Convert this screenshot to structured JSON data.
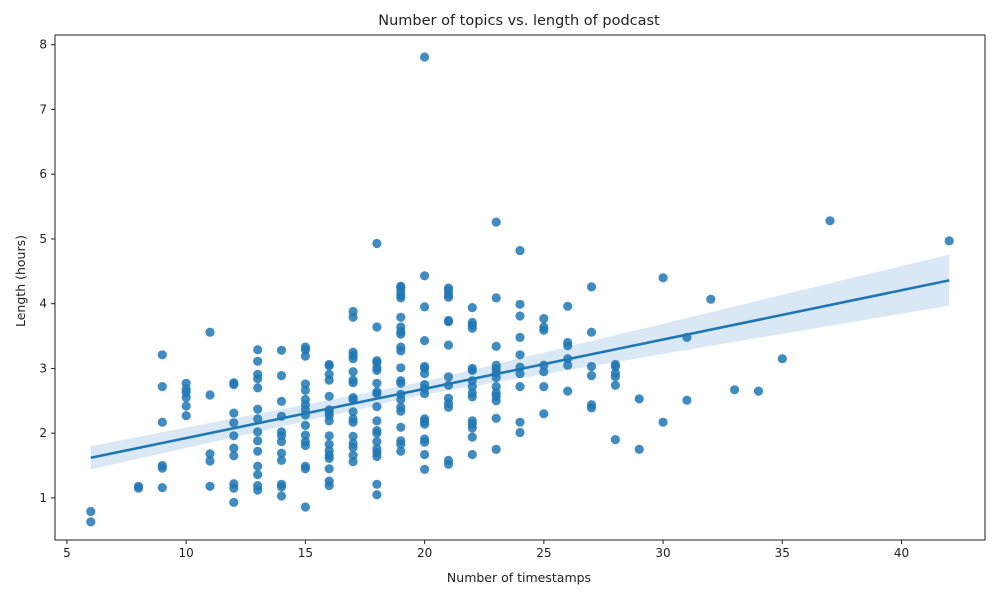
{
  "chart_data": {
    "type": "scatter",
    "title": "Number of topics vs. length of podcast",
    "xlabel": "Number of timestamps",
    "ylabel": "Length (hours)",
    "xlim": [
      4.5,
      43.5
    ],
    "ylim": [
      0.35,
      8.15
    ],
    "xticks": [
      5,
      10,
      15,
      20,
      25,
      30,
      35,
      40
    ],
    "yticks": [
      1,
      2,
      3,
      4,
      5,
      6,
      7,
      8
    ],
    "grid": false,
    "point_color": "#1f77b4",
    "regression": {
      "color": "#1f77b4",
      "band_color": "#c6dbef",
      "line": [
        [
          6,
          1.62
        ],
        [
          42,
          4.36
        ]
      ],
      "ci_lower": [
        [
          6,
          1.44
        ],
        [
          20,
          2.6
        ],
        [
          42,
          3.97
        ]
      ],
      "ci_upper": [
        [
          6,
          1.8
        ],
        [
          20,
          2.8
        ],
        [
          42,
          4.76
        ]
      ]
    },
    "points": [
      [
        6,
        0.63
      ],
      [
        6,
        0.79
      ],
      [
        8,
        1.15
      ],
      [
        8,
        1.18
      ],
      [
        9,
        1.16
      ],
      [
        9,
        1.46
      ],
      [
        9,
        1.5
      ],
      [
        9,
        2.17
      ],
      [
        9,
        2.72
      ],
      [
        9,
        3.21
      ],
      [
        10,
        2.27
      ],
      [
        10,
        2.42
      ],
      [
        10,
        2.55
      ],
      [
        10,
        2.63
      ],
      [
        10,
        2.68
      ],
      [
        10,
        2.77
      ],
      [
        11,
        1.18
      ],
      [
        11,
        1.57
      ],
      [
        11,
        1.68
      ],
      [
        11,
        2.59
      ],
      [
        11,
        3.56
      ],
      [
        12,
        0.93
      ],
      [
        12,
        1.15
      ],
      [
        12,
        1.22
      ],
      [
        12,
        1.65
      ],
      [
        12,
        1.77
      ],
      [
        12,
        1.96
      ],
      [
        12,
        2.16
      ],
      [
        12,
        2.31
      ],
      [
        12,
        2.75
      ],
      [
        12,
        2.78
      ],
      [
        13,
        1.12
      ],
      [
        13,
        1.19
      ],
      [
        13,
        1.36
      ],
      [
        13,
        1.49
      ],
      [
        13,
        1.72
      ],
      [
        13,
        1.88
      ],
      [
        13,
        2.02
      ],
      [
        13,
        2.22
      ],
      [
        13,
        2.37
      ],
      [
        13,
        2.7
      ],
      [
        13,
        2.84
      ],
      [
        13,
        2.91
      ],
      [
        13,
        3.11
      ],
      [
        13,
        3.29
      ],
      [
        14,
        1.03
      ],
      [
        14,
        1.17
      ],
      [
        14,
        1.21
      ],
      [
        14,
        1.58
      ],
      [
        14,
        1.69
      ],
      [
        14,
        1.87
      ],
      [
        14,
        1.96
      ],
      [
        14,
        2.02
      ],
      [
        14,
        2.26
      ],
      [
        14,
        2.49
      ],
      [
        14,
        2.89
      ],
      [
        14,
        3.28
      ],
      [
        15,
        0.86
      ],
      [
        15,
        1.45
      ],
      [
        15,
        1.49
      ],
      [
        15,
        1.81
      ],
      [
        15,
        1.87
      ],
      [
        15,
        1.97
      ],
      [
        15,
        2.12
      ],
      [
        15,
        2.28
      ],
      [
        15,
        2.36
      ],
      [
        15,
        2.44
      ],
      [
        15,
        2.52
      ],
      [
        15,
        2.66
      ],
      [
        15,
        2.76
      ],
      [
        15,
        3.19
      ],
      [
        15,
        3.29
      ],
      [
        15,
        3.33
      ],
      [
        16,
        1.19
      ],
      [
        16,
        1.26
      ],
      [
        16,
        1.45
      ],
      [
        16,
        1.61
      ],
      [
        16,
        1.66
      ],
      [
        16,
        1.73
      ],
      [
        16,
        1.83
      ],
      [
        16,
        1.96
      ],
      [
        16,
        2.19
      ],
      [
        16,
        2.27
      ],
      [
        16,
        2.32
      ],
      [
        16,
        2.36
      ],
      [
        16,
        2.57
      ],
      [
        16,
        2.82
      ],
      [
        16,
        2.91
      ],
      [
        16,
        3.04
      ],
      [
        16,
        3.06
      ],
      [
        17,
        1.56
      ],
      [
        17,
        1.66
      ],
      [
        17,
        1.78
      ],
      [
        17,
        1.84
      ],
      [
        17,
        1.95
      ],
      [
        17,
        2.17
      ],
      [
        17,
        2.22
      ],
      [
        17,
        2.33
      ],
      [
        17,
        2.52
      ],
      [
        17,
        2.55
      ],
      [
        17,
        2.78
      ],
      [
        17,
        2.82
      ],
      [
        17,
        2.95
      ],
      [
        17,
        3.15
      ],
      [
        17,
        3.2
      ],
      [
        17,
        3.25
      ],
      [
        17,
        3.79
      ],
      [
        17,
        3.88
      ],
      [
        18,
        1.05
      ],
      [
        18,
        1.21
      ],
      [
        18,
        1.64
      ],
      [
        18,
        1.7
      ],
      [
        18,
        1.76
      ],
      [
        18,
        1.87
      ],
      [
        18,
        2.0
      ],
      [
        18,
        2.04
      ],
      [
        18,
        2.19
      ],
      [
        18,
        2.41
      ],
      [
        18,
        2.61
      ],
      [
        18,
        2.64
      ],
      [
        18,
        2.77
      ],
      [
        18,
        2.97
      ],
      [
        18,
        3.01
      ],
      [
        18,
        3.09
      ],
      [
        18,
        3.12
      ],
      [
        18,
        3.64
      ],
      [
        18,
        4.93
      ],
      [
        19,
        1.72
      ],
      [
        19,
        1.83
      ],
      [
        19,
        1.88
      ],
      [
        19,
        2.09
      ],
      [
        19,
        2.34
      ],
      [
        19,
        2.4
      ],
      [
        19,
        2.52
      ],
      [
        19,
        2.6
      ],
      [
        19,
        2.77
      ],
      [
        19,
        2.81
      ],
      [
        19,
        3.01
      ],
      [
        19,
        3.27
      ],
      [
        19,
        3.33
      ],
      [
        19,
        3.53
      ],
      [
        19,
        3.57
      ],
      [
        19,
        3.64
      ],
      [
        19,
        3.79
      ],
      [
        19,
        4.09
      ],
      [
        19,
        4.13
      ],
      [
        19,
        4.19
      ],
      [
        19,
        4.25
      ],
      [
        19,
        4.27
      ],
      [
        20,
        1.44
      ],
      [
        20,
        1.67
      ],
      [
        20,
        1.86
      ],
      [
        20,
        1.91
      ],
      [
        20,
        2.14
      ],
      [
        20,
        2.18
      ],
      [
        20,
        2.22
      ],
      [
        20,
        2.61
      ],
      [
        20,
        2.69
      ],
      [
        20,
        2.75
      ],
      [
        20,
        2.92
      ],
      [
        20,
        3.0
      ],
      [
        20,
        3.03
      ],
      [
        20,
        3.43
      ],
      [
        20,
        3.95
      ],
      [
        20,
        4.43
      ],
      [
        20,
        7.81
      ],
      [
        21,
        1.52
      ],
      [
        21,
        1.58
      ],
      [
        21,
        2.4
      ],
      [
        21,
        2.46
      ],
      [
        21,
        2.54
      ],
      [
        21,
        2.74
      ],
      [
        21,
        2.87
      ],
      [
        21,
        3.36
      ],
      [
        21,
        3.72
      ],
      [
        21,
        3.74
      ],
      [
        21,
        4.1
      ],
      [
        21,
        4.14
      ],
      [
        21,
        4.2
      ],
      [
        21,
        4.24
      ],
      [
        22,
        1.67
      ],
      [
        22,
        1.94
      ],
      [
        22,
        2.08
      ],
      [
        22,
        2.14
      ],
      [
        22,
        2.19
      ],
      [
        22,
        2.56
      ],
      [
        22,
        2.62
      ],
      [
        22,
        2.72
      ],
      [
        22,
        2.81
      ],
      [
        22,
        2.97
      ],
      [
        22,
        3.0
      ],
      [
        22,
        3.62
      ],
      [
        22,
        3.67
      ],
      [
        22,
        3.71
      ],
      [
        22,
        3.94
      ],
      [
        23,
        1.75
      ],
      [
        23,
        2.23
      ],
      [
        23,
        2.5
      ],
      [
        23,
        2.57
      ],
      [
        23,
        2.62
      ],
      [
        23,
        2.72
      ],
      [
        23,
        2.86
      ],
      [
        23,
        2.93
      ],
      [
        23,
        2.99
      ],
      [
        23,
        3.05
      ],
      [
        23,
        3.34
      ],
      [
        23,
        4.09
      ],
      [
        23,
        5.26
      ],
      [
        24,
        2.01
      ],
      [
        24,
        2.17
      ],
      [
        24,
        2.72
      ],
      [
        24,
        2.92
      ],
      [
        24,
        3.02
      ],
      [
        24,
        3.21
      ],
      [
        24,
        3.48
      ],
      [
        24,
        3.81
      ],
      [
        24,
        3.99
      ],
      [
        24,
        4.82
      ],
      [
        25,
        2.3
      ],
      [
        25,
        2.72
      ],
      [
        25,
        2.95
      ],
      [
        25,
        3.05
      ],
      [
        25,
        3.59
      ],
      [
        25,
        3.64
      ],
      [
        25,
        3.77
      ],
      [
        26,
        2.65
      ],
      [
        26,
        3.05
      ],
      [
        26,
        3.15
      ],
      [
        26,
        3.35
      ],
      [
        26,
        3.4
      ],
      [
        26,
        3.96
      ],
      [
        27,
        2.39
      ],
      [
        27,
        2.44
      ],
      [
        27,
        2.89
      ],
      [
        27,
        3.03
      ],
      [
        27,
        3.56
      ],
      [
        27,
        4.26
      ],
      [
        28,
        1.9
      ],
      [
        28,
        2.74
      ],
      [
        28,
        2.87
      ],
      [
        28,
        2.93
      ],
      [
        28,
        3.03
      ],
      [
        28,
        3.06
      ],
      [
        29,
        1.75
      ],
      [
        29,
        2.53
      ],
      [
        30,
        2.17
      ],
      [
        30,
        4.4
      ],
      [
        31,
        2.51
      ],
      [
        31,
        3.48
      ],
      [
        32,
        4.07
      ],
      [
        33,
        2.67
      ],
      [
        34,
        2.65
      ],
      [
        35,
        3.15
      ],
      [
        37,
        5.28
      ],
      [
        42,
        4.97
      ]
    ]
  }
}
